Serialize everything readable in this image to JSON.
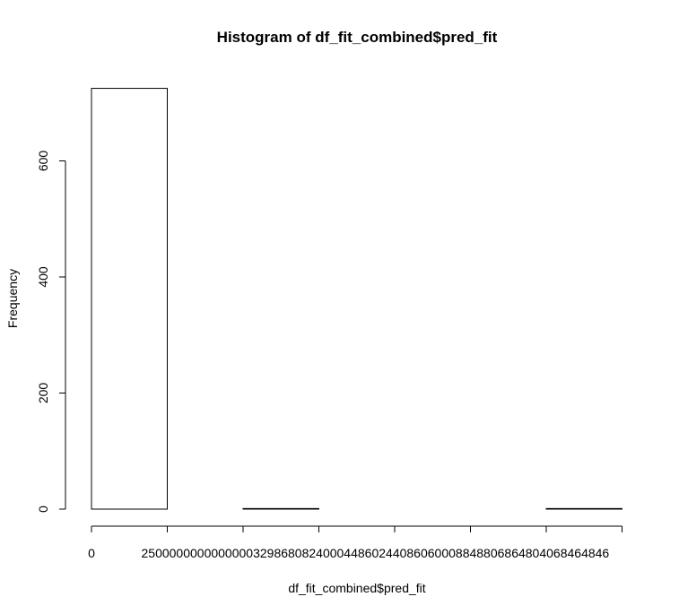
{
  "chart_data": {
    "type": "bar",
    "title": "Histogram of df_fit_combined$pred_fit",
    "xlabel": "df_fit_combined$pred_fit",
    "ylabel": "Frequency",
    "x_tick_labels": [
      "0",
      "25000000000000003",
      "29868082400044",
      "86024408606000",
      "88488068648040",
      "68464846"
    ],
    "y_tick_labels": [
      "0",
      "200",
      "400",
      "600"
    ],
    "ylim": [
      0,
      730
    ],
    "bins": [
      {
        "bin": 1,
        "value": 725
      },
      {
        "bin": 2,
        "value": 0
      },
      {
        "bin": 3,
        "value": 1
      },
      {
        "bin": 4,
        "value": 0
      },
      {
        "bin": 5,
        "value": 0
      },
      {
        "bin": 6,
        "value": 0
      },
      {
        "bin": 7,
        "value": 1
      }
    ],
    "grid": false,
    "legend": "none"
  }
}
